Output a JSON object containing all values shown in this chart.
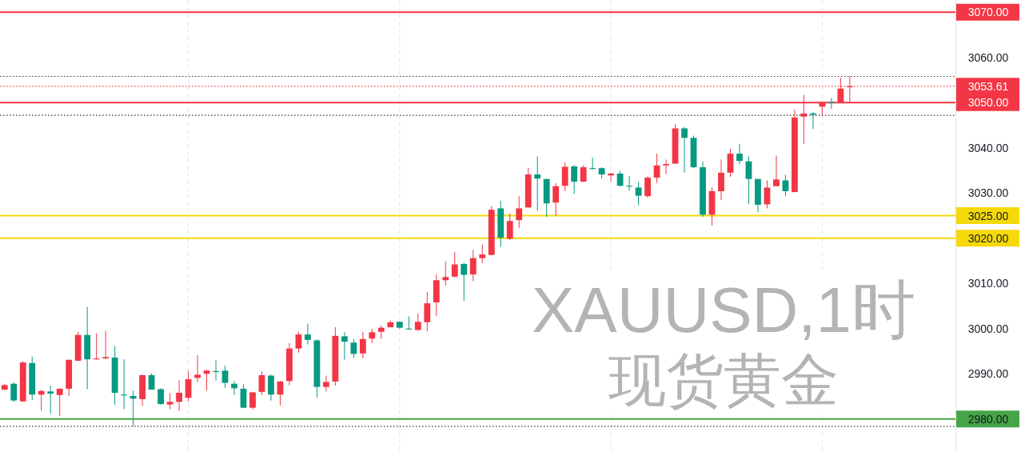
{
  "chart_data": {
    "type": "candlestick",
    "title": "XAUUSD,1时",
    "subtitle": "现货黄金",
    "grid": "x",
    "categories": [
      null,
      null,
      null,
      null,
      null,
      null,
      null,
      null,
      null,
      null,
      null,
      null,
      null,
      null,
      null,
      null,
      null,
      null,
      null,
      null,
      null,
      null,
      null,
      null,
      null,
      null,
      null,
      null,
      null,
      null,
      null,
      null,
      null,
      null,
      null,
      null,
      null,
      null,
      null,
      null,
      null,
      null,
      null,
      null,
      null,
      null,
      null,
      null,
      null,
      null,
      null,
      null,
      null,
      null,
      null,
      null,
      null,
      null,
      null,
      null,
      null,
      null,
      null,
      null,
      null,
      null,
      null,
      null,
      null,
      null,
      null,
      null,
      null,
      null,
      null,
      null,
      null,
      null,
      null,
      null,
      null,
      null,
      null,
      null,
      null,
      null,
      null,
      null,
      null,
      null,
      null,
      null,
      null,
      null,
      null,
      null,
      null,
      null,
      null,
      null,
      null,
      null,
      null,
      null
    ],
    "ohlc": [
      [
        2986.5,
        2987.8,
        2986.3,
        2987.5
      ],
      [
        2987.8,
        2988.1,
        2983.8,
        2984.1
      ],
      [
        2983.9,
        2992.8,
        2983.8,
        2992.5
      ],
      [
        2992.4,
        2993.8,
        2984.2,
        2985.4
      ],
      [
        2985.4,
        2986.5,
        2981.8,
        2986.2
      ],
      [
        2986.1,
        2987.4,
        2981.2,
        2985.6
      ],
      [
        2985.3,
        2986.8,
        2980.7,
        2986.7
      ],
      [
        2986.7,
        2993.1,
        2985.1,
        2993.1
      ],
      [
        2992.9,
        2999.3,
        2992.8,
        2998.6
      ],
      [
        2998.6,
        3004.8,
        2986.6,
        2993.2
      ],
      [
        2993.2,
        2999.0,
        2993.1,
        2993.4
      ],
      [
        2993.4,
        2999.5,
        2993.3,
        2993.7
      ],
      [
        2993.6,
        2996.1,
        2983.2,
        2985.8
      ],
      [
        2985.4,
        2993.2,
        2982.2,
        2985.2
      ],
      [
        2985.1,
        2986.3,
        2978.4,
        2984.5
      ],
      [
        2984.4,
        2989.8,
        2982.9,
        2989.7
      ],
      [
        2989.7,
        2990.1,
        2986.5,
        2986.5
      ],
      [
        2986.6,
        2986.8,
        2983.2,
        2983.3
      ],
      [
        2983.2,
        2985.7,
        2982.2,
        2983.8
      ],
      [
        2983.8,
        2988.6,
        2981.8,
        2985.8
      ],
      [
        2984.7,
        2990.6,
        2983.9,
        2988.8
      ],
      [
        2989.1,
        2994.1,
        2988.2,
        2989.8
      ],
      [
        2990.0,
        2990.9,
        2986.3,
        2990.7
      ],
      [
        2990.6,
        2993.0,
        2988.5,
        2990.4
      ],
      [
        2990.7,
        2991.8,
        2986.9,
        2988.0
      ],
      [
        2987.8,
        2988.4,
        2985.3,
        2986.8
      ],
      [
        2986.7,
        2987.7,
        2982.4,
        2982.5
      ],
      [
        2982.5,
        2986.0,
        2982.1,
        2985.9
      ],
      [
        2986.0,
        2990.6,
        2985.3,
        2989.7
      ],
      [
        2989.6,
        2989.8,
        2984.1,
        2985.4
      ],
      [
        2985.4,
        2988.4,
        2983.0,
        2988.3
      ],
      [
        2988.4,
        2996.8,
        2987.5,
        2995.6
      ],
      [
        2995.6,
        2999.3,
        2994.7,
        2998.7
      ],
      [
        2998.7,
        3001.1,
        2996.5,
        2997.5
      ],
      [
        2997.4,
        2997.6,
        2984.7,
        2987.1
      ],
      [
        2987.1,
        2989.6,
        2986.1,
        2988.2
      ],
      [
        2988.3,
        3000.3,
        2987.4,
        2998.4
      ],
      [
        2998.3,
        2999.2,
        2993.1,
        2997.1
      ],
      [
        2996.9,
        2997.7,
        2993.5,
        2994.4
      ],
      [
        2994.5,
        2999.3,
        2993.4,
        2997.7
      ],
      [
        2997.8,
        3000.0,
        2996.8,
        2999.2
      ],
      [
        2999.3,
        3000.7,
        2997.7,
        3000.2
      ],
      [
        3000.3,
        3001.8,
        3000.3,
        3001.4
      ],
      [
        3001.5,
        3001.6,
        2999.9,
        3000.2
      ],
      [
        3000.0,
        3002.7,
        2999.8,
        2999.8
      ],
      [
        2999.7,
        3003.3,
        2999.5,
        3001.5
      ],
      [
        3001.4,
        3008.1,
        2999.4,
        3005.6
      ],
      [
        3005.8,
        3012.0,
        3002.8,
        3010.7
      ],
      [
        3010.7,
        3014.9,
        3009.5,
        3011.4
      ],
      [
        3011.5,
        3017.0,
        3011.3,
        3014.2
      ],
      [
        3014.3,
        3014.6,
        3006.1,
        3011.9
      ],
      [
        3012.0,
        3017.4,
        3010.5,
        3015.6
      ],
      [
        3015.6,
        3018.6,
        3014.5,
        3016.4
      ],
      [
        3016.3,
        3027.1,
        3016.2,
        3026.3
      ],
      [
        3026.6,
        3028.3,
        3018.1,
        3020.1
      ],
      [
        3019.9,
        3025.5,
        3019.6,
        3023.8
      ],
      [
        3024.0,
        3029.3,
        3022.3,
        3026.6
      ],
      [
        3026.8,
        3035.6,
        3026.8,
        3034.1
      ],
      [
        3034.1,
        3038.1,
        3026.1,
        3033.2
      ],
      [
        3033.1,
        3033.1,
        3024.7,
        3027.7
      ],
      [
        3027.9,
        3032.2,
        3025.0,
        3031.5
      ],
      [
        3031.6,
        3036.8,
        3030.4,
        3035.8
      ],
      [
        3035.9,
        3036.1,
        3029.8,
        3032.5
      ],
      [
        3032.5,
        3036.1,
        3032.5,
        3035.7
      ],
      [
        3035.5,
        3037.8,
        3035.2,
        3035.3
      ],
      [
        3035.5,
        3035.7,
        3033.2,
        3034.1
      ],
      [
        3033.9,
        3034.4,
        3032.5,
        3034.3
      ],
      [
        3034.3,
        3034.9,
        3031.4,
        3031.6
      ],
      [
        3031.6,
        3033.8,
        3030.5,
        3031.4
      ],
      [
        3031.2,
        3032.4,
        3027.3,
        3029.4
      ],
      [
        3029.3,
        3033.7,
        3029.0,
        3033.4
      ],
      [
        3033.4,
        3038.7,
        3032.2,
        3036.1
      ],
      [
        3036.1,
        3037.4,
        3034.2,
        3036.4
      ],
      [
        3036.5,
        3045.2,
        3036.5,
        3044.3
      ],
      [
        3044.3,
        3044.6,
        3034.5,
        3042.2
      ],
      [
        3042.2,
        3042.7,
        3035.5,
        3035.7
      ],
      [
        3035.7,
        3037.0,
        3024.7,
        3025.2
      ],
      [
        3025.2,
        3031.2,
        3022.8,
        3030.4
      ],
      [
        3030.4,
        3037.4,
        3028.4,
        3034.5
      ],
      [
        3034.5,
        3039.7,
        3033.6,
        3038.7
      ],
      [
        3038.7,
        3040.9,
        3036.4,
        3037.1
      ],
      [
        3037.0,
        3038.1,
        3027.5,
        3033.1
      ],
      [
        3033.1,
        3033.1,
        3025.8,
        3027.4
      ],
      [
        3027.5,
        3032.8,
        3026.6,
        3031.2
      ],
      [
        3031.5,
        3038.3,
        3031.5,
        3033.0
      ],
      [
        3032.8,
        3034.0,
        3029.3,
        3030.4
      ],
      [
        3030.2,
        3048.5,
        3030.2,
        3046.7
      ],
      [
        3046.9,
        3051.7,
        3040.9,
        3047.6
      ],
      [
        3047.6,
        3047.9,
        3044.2,
        3047.3
      ],
      [
        3049.1,
        3050.1,
        3047.2,
        3050.1
      ],
      [
        3050.1,
        3051.0,
        3048.6,
        3049.9
      ],
      [
        3049.9,
        3055.5,
        3049.9,
        3053.1
      ],
      [
        3053.4,
        3055.8,
        3050.1,
        3053.61
      ],
      null,
      null,
      null,
      null,
      null,
      null,
      null,
      null,
      null,
      null,
      null
    ],
    "colors": [
      "#f23645",
      "#089981",
      "#f23645",
      "#089981",
      "#f23645",
      "#089981",
      "#f23645",
      "#f23645",
      "#f23645",
      "#089981",
      "#f23645",
      "#f23645",
      "#089981",
      "#089981",
      "#089981",
      "#f23645",
      "#089981",
      "#089981",
      "#f23645",
      "#f23645",
      "#f23645",
      "#f23645",
      "#f23645",
      "#089981",
      "#089981",
      "#089981",
      "#089981",
      "#f23645",
      "#f23645",
      "#089981",
      "#f23645",
      "#f23645",
      "#f23645",
      "#089981",
      "#089981",
      "#f23645",
      "#f23645",
      "#089981",
      "#089981",
      "#f23645",
      "#f23645",
      "#f23645",
      "#f23645",
      "#089981",
      "#089981",
      "#f23645",
      "#f23645",
      "#f23645",
      "#f23645",
      "#f23645",
      "#089981",
      "#f23645",
      "#f23645",
      "#f23645",
      "#089981",
      "#f23645",
      "#f23645",
      "#f23645",
      "#089981",
      "#089981",
      "#f23645",
      "#f23645",
      "#089981",
      "#f23645",
      "#089981",
      "#089981",
      "#f23645",
      "#089981",
      "#089981",
      "#089981",
      "#f23645",
      "#f23645",
      "#f23645",
      "#f23645",
      "#089981",
      "#089981",
      "#089981",
      "#f23645",
      "#f23645",
      "#f23645",
      "#089981",
      "#089981",
      "#089981",
      "#f23645",
      "#f23645",
      "#089981",
      "#f23645",
      "#f23645",
      "#089981",
      "#f23645",
      "#089981",
      "#f23645",
      "#f23645",
      null,
      null,
      null,
      null,
      null,
      null,
      null,
      null,
      null,
      null,
      null
    ],
    "ylim": [
      2972.7,
      3072.7
    ],
    "yticks": [
      {
        "value": 2990,
        "label": "2990.00"
      },
      {
        "value": 3000,
        "label": "3000.00"
      },
      {
        "value": 3010,
        "label": "3010.00"
      },
      {
        "value": 3030,
        "label": "3030.00"
      },
      {
        "value": 3040,
        "label": "3040.00"
      },
      {
        "value": 3060,
        "label": "3060.00"
      }
    ],
    "ref_lines": [
      {
        "axis": "y",
        "value": 3070,
        "label": "3070.00",
        "color": "#f23645",
        "line_style": "solid"
      },
      {
        "axis": "y",
        "value": 3055.8,
        "color": "#333333",
        "line_style": "dotted"
      },
      {
        "axis": "y",
        "value": 3053.61,
        "label": "3053.61",
        "color": "#f23645",
        "line_style": "dotted"
      },
      {
        "axis": "y",
        "value": 3050,
        "label": "3050.00",
        "color": "#f23645",
        "line_style": "solid"
      },
      {
        "axis": "y",
        "value": 3047.2,
        "color": "#333333",
        "line_style": "dotted"
      },
      {
        "axis": "y",
        "value": 3025,
        "label": "3025.00",
        "color": "#f5d90a",
        "line_style": "solid"
      },
      {
        "axis": "y",
        "value": 3020,
        "label": "3020.00",
        "color": "#f5d90a",
        "line_style": "solid"
      },
      {
        "axis": "y",
        "value": 2980,
        "label": "2980.00",
        "color": "#46a546",
        "line_style": "solid"
      },
      {
        "axis": "y",
        "value": 2978.4,
        "color": "#333333",
        "line_style": "dotted"
      }
    ]
  }
}
